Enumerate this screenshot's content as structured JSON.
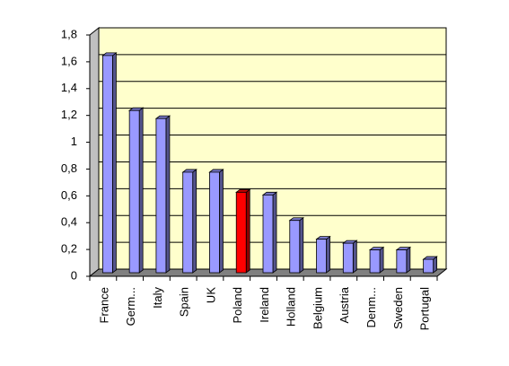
{
  "chart_data": {
    "type": "bar3d",
    "categories": [
      "France",
      "Germ...",
      "Italy",
      "Spain",
      "UK",
      "Poland",
      "Ireland",
      "Holland",
      "Belgium",
      "Austria",
      "Denm...",
      "Sweden",
      "Portugal"
    ],
    "values": [
      1.62,
      1.21,
      1.15,
      0.75,
      0.75,
      0.6,
      0.58,
      0.39,
      0.25,
      0.22,
      0.17,
      0.17,
      0.1
    ],
    "colors": [
      "#9999ff",
      "#9999ff",
      "#9999ff",
      "#9999ff",
      "#9999ff",
      "#ff0000",
      "#9999ff",
      "#9999ff",
      "#9999ff",
      "#9999ff",
      "#9999ff",
      "#9999ff",
      "#9999ff"
    ],
    "ylim": [
      0,
      1.8
    ],
    "yticks": [
      0,
      {
        "value": 0.2,
        "label": "0,2"
      },
      {
        "value": 0.4,
        "label": "0,4"
      },
      {
        "value": 0.6,
        "label": "0,6"
      },
      {
        "value": 0.8,
        "label": "0,8"
      },
      1,
      {
        "value": 1.2,
        "label": "1,2"
      },
      {
        "value": 1.4,
        "label": "1,4"
      },
      {
        "value": 1.6,
        "label": "1,6"
      },
      {
        "value": 1.8,
        "label": "1,8"
      }
    ],
    "grid": true
  }
}
